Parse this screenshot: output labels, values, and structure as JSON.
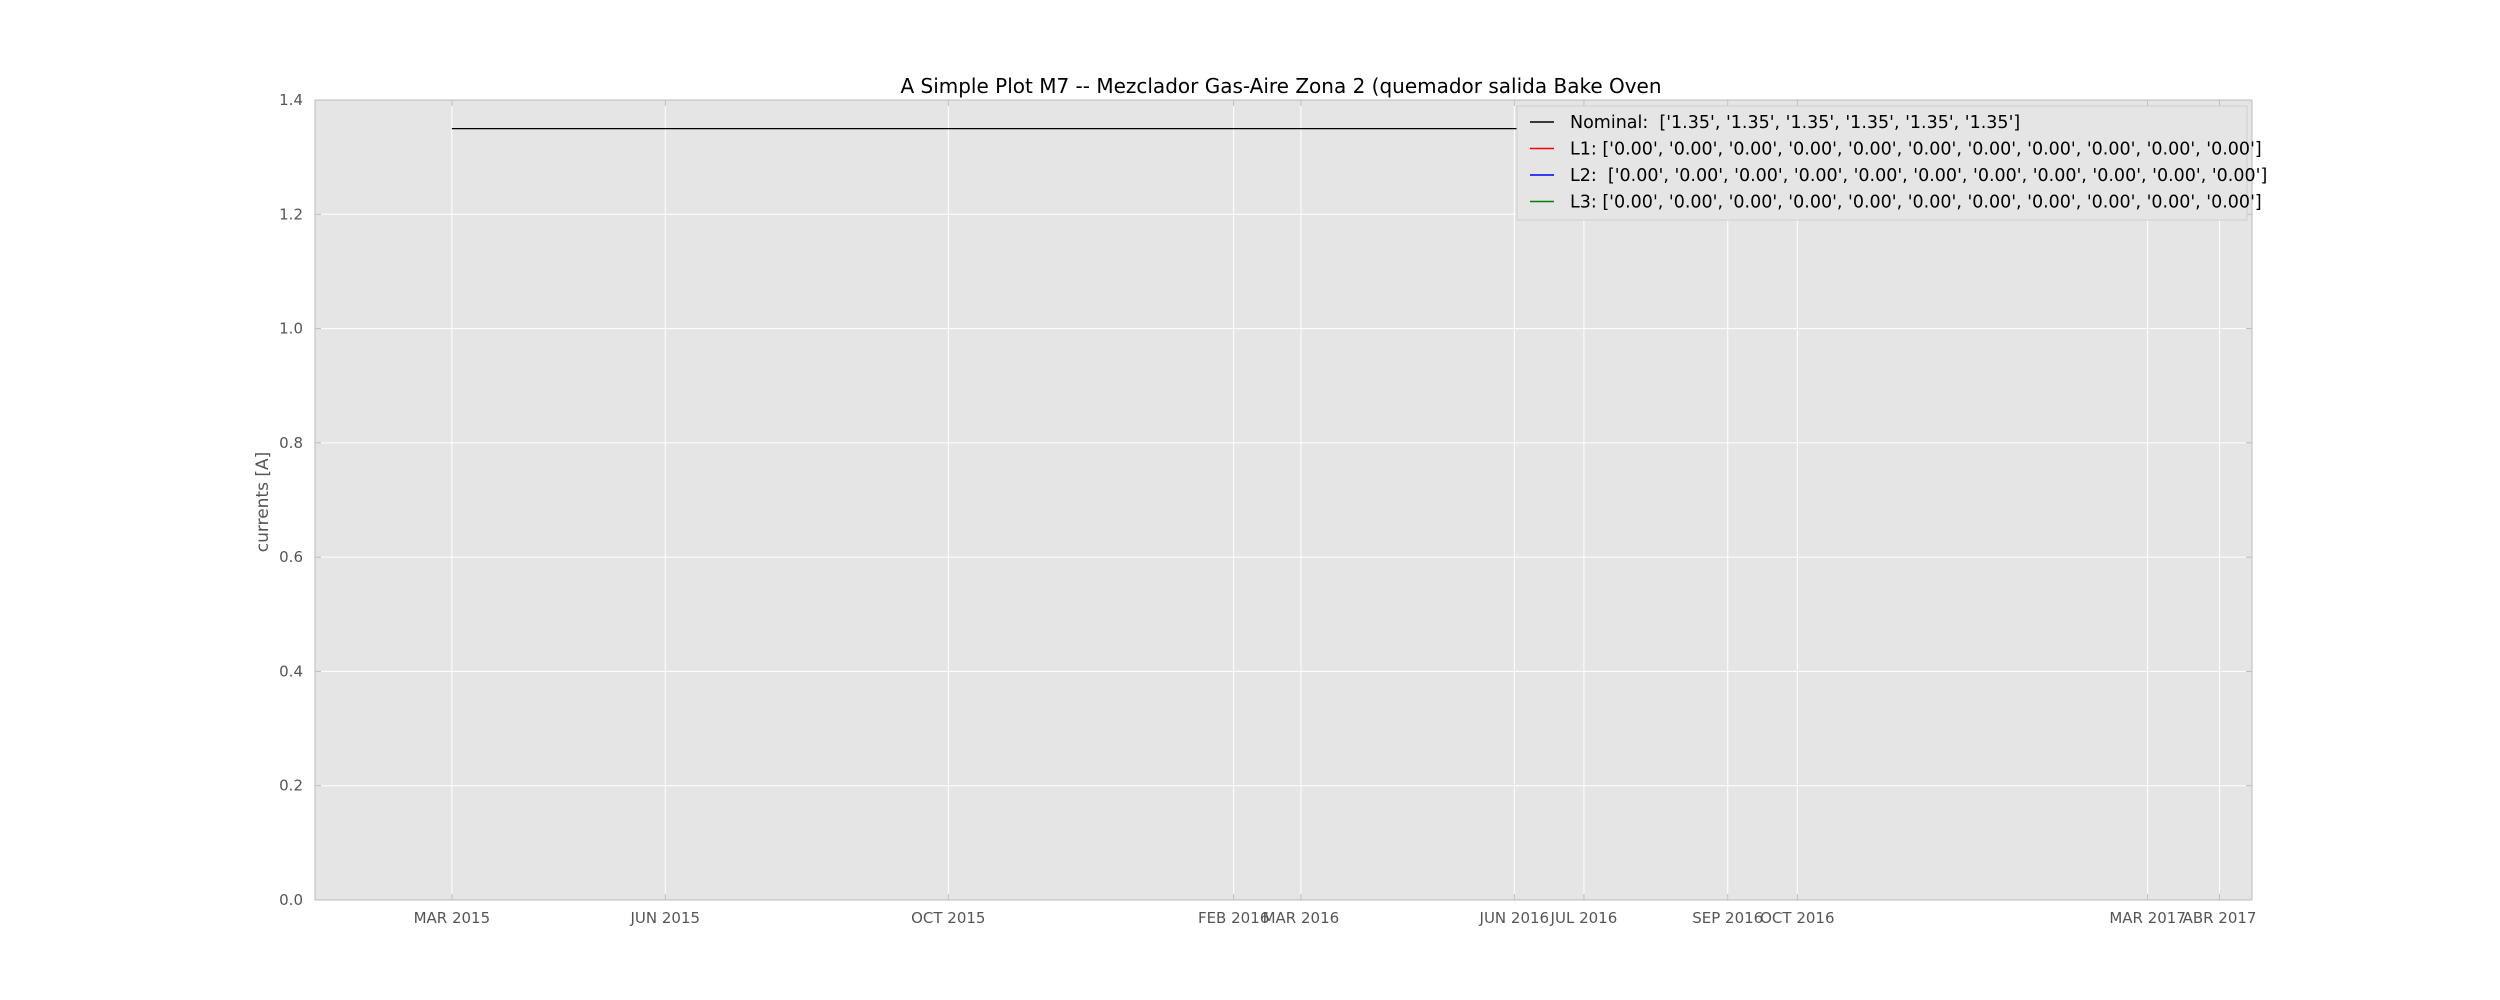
{
  "chart_data": {
    "type": "line",
    "title": "A Simple Plot M7 -- Mezclador Gas-Aire Zona 2 (quemador salida Bake Oven",
    "xlabel": "",
    "ylabel": "currents [A]",
    "ylim": [
      0,
      1.4
    ],
    "yticks": [
      "0.0",
      "0.2",
      "0.4",
      "0.6",
      "0.8",
      "1.0",
      "1.2",
      "1.4"
    ],
    "xlim": [
      "2015-01-01",
      "2017-04-15"
    ],
    "xticks": [
      {
        "date": "2015-03-01",
        "label": "MAR 2015"
      },
      {
        "date": "2015-06-01",
        "label": "JUN 2015"
      },
      {
        "date": "2015-10-01",
        "label": "OCT 2015"
      },
      {
        "date": "2016-02-01",
        "label": "FEB 2016"
      },
      {
        "date": "2016-03-01",
        "label": "MAR 2016"
      },
      {
        "date": "2016-06-01",
        "label": "JUN 2016"
      },
      {
        "date": "2016-07-01",
        "label": "JUL 2016"
      },
      {
        "date": "2016-09-01",
        "label": "SEP 2016"
      },
      {
        "date": "2016-10-01",
        "label": "OCT 2016"
      },
      {
        "date": "2017-03-01",
        "label": "MAR 2017"
      },
      {
        "date": "2017-04-01",
        "label": "ABR 2017"
      }
    ],
    "grid": true,
    "legend_position": "top-right",
    "series": [
      {
        "name": "Nominal",
        "legend_label": "Nominal:  ['1.35', '1.35', '1.35', '1.35', '1.35', '1.35']",
        "color": "#000000",
        "x": [
          "2015-03-01",
          "2017-04-01"
        ],
        "y": [
          1.35,
          1.35
        ]
      },
      {
        "name": "L1",
        "legend_label": "L1: ['0.00', '0.00', '0.00', '0.00', '0.00', '0.00', '0.00', '0.00', '0.00', '0.00', '0.00']",
        "color": "#ff0000",
        "x": [],
        "y": []
      },
      {
        "name": "L2",
        "legend_label": "L2:  ['0.00', '0.00', '0.00', '0.00', '0.00', '0.00', '0.00', '0.00', '0.00', '0.00', '0.00']",
        "color": "#0000ff",
        "x": [],
        "y": []
      },
      {
        "name": "L3",
        "legend_label": "L3: ['0.00', '0.00', '0.00', '0.00', '0.00', '0.00', '0.00', '0.00', '0.00', '0.00', '0.00']",
        "color": "#008000",
        "x": [],
        "y": []
      }
    ],
    "colors": {
      "plot_background": "#e5e5e5",
      "grid": "#ffffff",
      "axis": "#bcbcbc",
      "tick_text": "#555555"
    }
  }
}
